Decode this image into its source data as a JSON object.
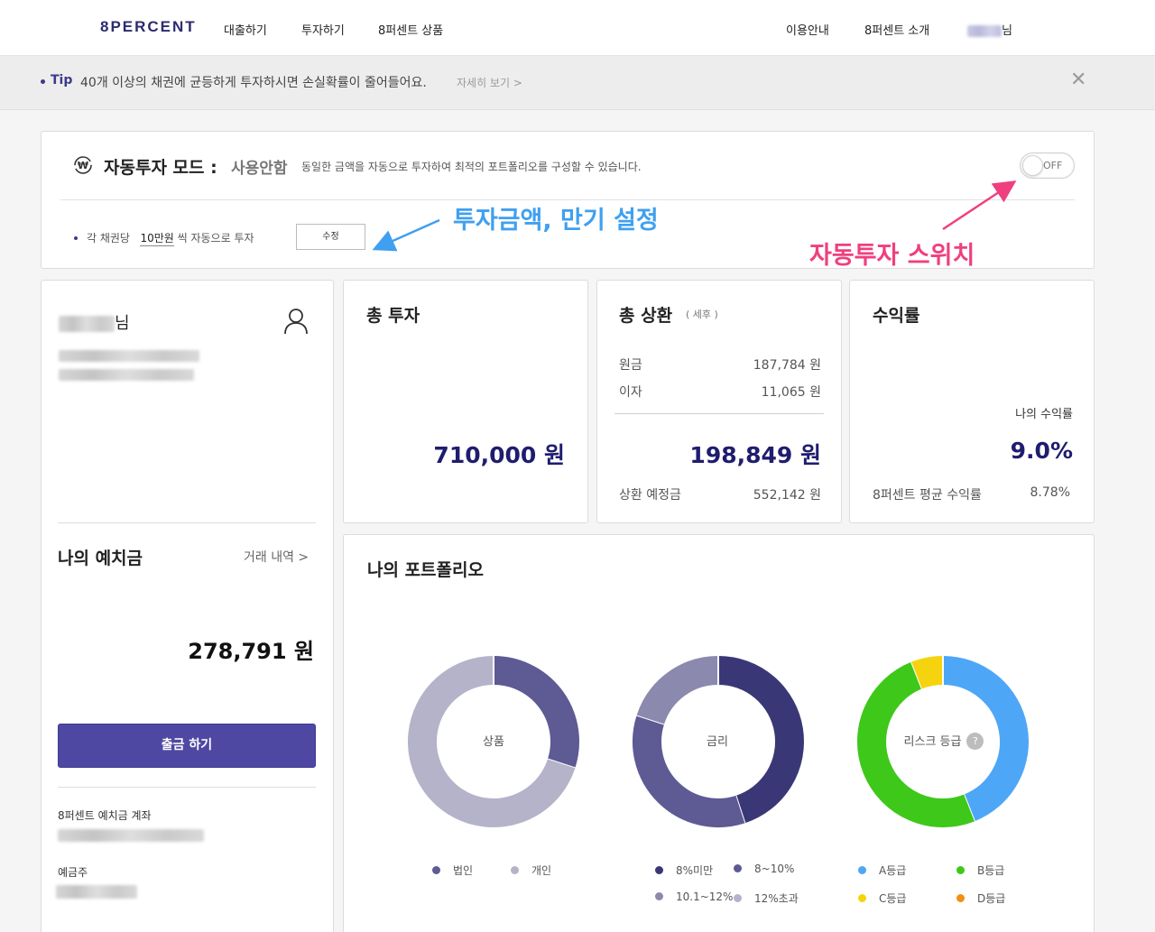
{
  "nav": {
    "logo": "8PERCENT",
    "left_items": [
      "대출하기",
      "투자하기",
      "8퍼센트 상품"
    ],
    "right_items": [
      "이용안내",
      "8퍼센트 소개"
    ],
    "user_suffix": "님"
  },
  "tip": {
    "label": "Tip",
    "text": "40개 이상의 채권에 균등하게 투자하시면 손실확률이 줄어들어요.",
    "more": "자세히 보기 >",
    "close": "✕"
  },
  "auto_invest": {
    "title": "자동투자 모드 :",
    "status": "사용안함",
    "description": "동일한 금액을 자동으로 투자하여 최적의 포트폴리오를 구성할 수 있습니다.",
    "toggle_label": "OFF",
    "toggle_on": false,
    "setting_prefix": "각 채권당",
    "setting_amount": "10만원",
    "setting_suffix": "씩 자동으로 투자",
    "edit_button": "수정",
    "annotation_settings": "투자금액, 만기 설정",
    "annotation_switch": "자동투자 스위치"
  },
  "profile": {
    "name_suffix": "님",
    "deposit_title": "나의 예치금",
    "history_link": "거래 내역 >",
    "deposit_amount": "278,791 원",
    "withdraw_button": "출금 하기",
    "account_label": "8퍼센트 예치금 계좌",
    "holder_label": "예금주"
  },
  "total_investment": {
    "title": "총 투자",
    "amount": "710,000 원"
  },
  "total_repayment": {
    "title": "총 상환",
    "subtitle": "( 세후 )",
    "principal_label": "원금",
    "principal_value": "187,784 원",
    "interest_label": "이자",
    "interest_value": "11,065 원",
    "amount": "198,849 원",
    "expected_label": "상환 예정금",
    "expected_value": "552,142 원"
  },
  "yield": {
    "title": "수익률",
    "my_label": "나의 수익률",
    "my_value": "9.0%",
    "avg_label": "8퍼센트 평균 수익률",
    "avg_value": "8.78%"
  },
  "portfolio": {
    "title": "나의 포트폴리오",
    "charts": [
      {
        "center_label": "상품",
        "segments": [
          {
            "name": "법인",
            "value": 0.3,
            "color": "#5d5a94"
          },
          {
            "name": "개인",
            "value": 0.7,
            "color": "#b4b3c9"
          }
        ]
      },
      {
        "center_label": "금리",
        "segments": [
          {
            "name": "8%미만",
            "value": 0.45,
            "color": "#3a3777"
          },
          {
            "name": "8~10%",
            "value": 0.35,
            "color": "#5d5a94"
          },
          {
            "name": "10.1~12%",
            "value": 0.2,
            "color": "#8b89ad"
          },
          {
            "name": "12%초과",
            "value": 0.0,
            "color": "#b4b3c9"
          }
        ]
      },
      {
        "center_label": "리스크 등급",
        "help": "?",
        "segments": [
          {
            "name": "A등급",
            "value": 0.44,
            "color": "#4ea6f7"
          },
          {
            "name": "B등급",
            "value": 0.5,
            "color": "#3ec81a"
          },
          {
            "name": "C등급",
            "value": 0.06,
            "color": "#f5d40f"
          },
          {
            "name": "D등급",
            "value": 0.0,
            "color": "#f28f14"
          }
        ]
      }
    ]
  }
}
